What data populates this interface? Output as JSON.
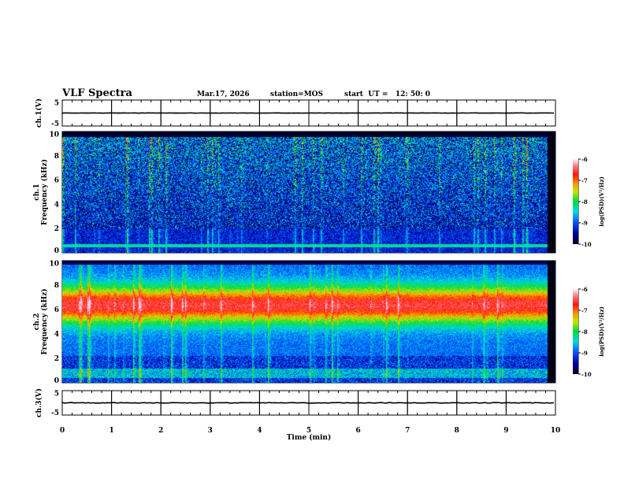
{
  "header": {
    "title": "VLF Spectra",
    "date": "Mar.17, 2026",
    "station": "station=MOS",
    "start": "start  UT =   12: 50: 0"
  },
  "chart_data": [
    {
      "type": "line",
      "name": "ch1 waveform",
      "ylabel": "ch.1(V)",
      "ylim": [
        -5,
        5
      ],
      "yticks": [
        "5",
        "-5"
      ],
      "xlim": [
        0,
        10
      ],
      "series": [
        {
          "name": "ch.1",
          "approx_value": 0
        }
      ]
    },
    {
      "type": "heatmap",
      "name": "ch1 spectrogram",
      "ylabel": "ch.1 Frequency (kHz)",
      "ylim": [
        0,
        10
      ],
      "yticks": [
        "0",
        "2",
        "4",
        "6",
        "8",
        "10"
      ],
      "xlim": [
        0,
        10
      ],
      "zlim": [
        -10,
        -6
      ],
      "colorbar_label": "log(PSD)(V²/Hz)",
      "colorbar_ticks": [
        "-6",
        "-7",
        "-8",
        "-9",
        "-10"
      ],
      "description_band_khz": [
        0,
        9.5
      ]
    },
    {
      "type": "heatmap",
      "name": "ch2 spectrogram",
      "ylabel": "ch.2 Frequency (kHz)",
      "ylim": [
        0,
        10
      ],
      "yticks": [
        "0",
        "2",
        "4",
        "6",
        "8",
        "10"
      ],
      "xlim": [
        0,
        10
      ],
      "zlim": [
        -10,
        -6
      ],
      "colorbar_label": "log(PSD)(V²/Hz)",
      "colorbar_ticks": [
        "-6",
        "-7",
        "-8",
        "-9",
        "-10"
      ],
      "peak_band_khz": [
        5,
        8
      ]
    },
    {
      "type": "line",
      "name": "ch3 waveform",
      "ylabel": "ch.3(V)",
      "ylim": [
        -5,
        5
      ],
      "yticks": [
        "5",
        "-5"
      ],
      "xlim": [
        0,
        10
      ],
      "xlabel": "Time  (min)",
      "xticks": [
        "0",
        "1",
        "2",
        "3",
        "4",
        "5",
        "6",
        "7",
        "8",
        "9",
        "10"
      ],
      "series": [
        {
          "name": "ch.3",
          "approx_value": 0
        }
      ]
    }
  ],
  "colors": {
    "axis": "#000000"
  }
}
